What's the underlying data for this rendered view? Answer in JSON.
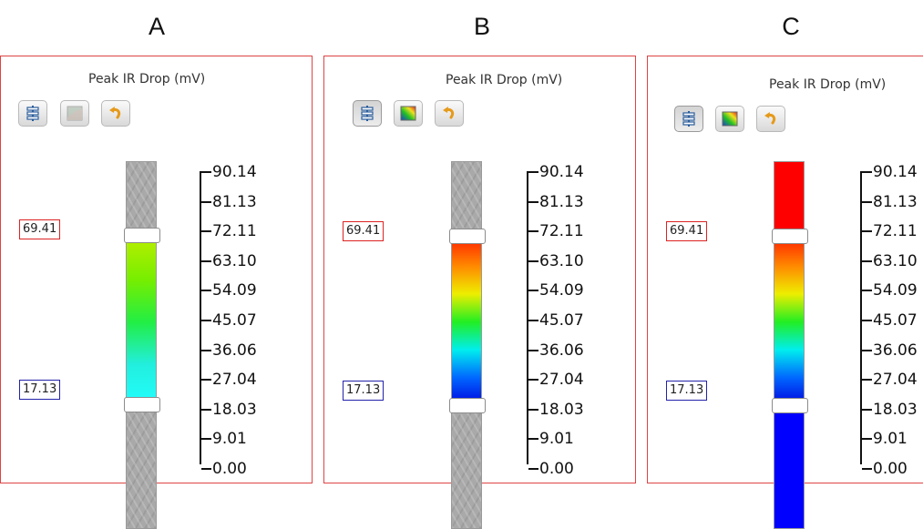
{
  "panels": [
    {
      "letter": "A",
      "title": "Peak IR Drop (mV)",
      "upper_value": "69.41",
      "lower_value": "17.13",
      "mode": "gradient-between-handles",
      "gradient_colors": [
        "#b7ee00",
        "#77ee00",
        "#22ee44",
        "#22eedd",
        "#22ffff"
      ],
      "above_color": "#a9a9a9",
      "below_color": "#a9a9a9",
      "buttons": [
        {
          "icon": "adjust-sliders-icon",
          "state": "normal"
        },
        {
          "icon": "color-map-icon",
          "state": "disabled"
        },
        {
          "icon": "reset-icon",
          "state": "normal"
        }
      ]
    },
    {
      "letter": "B",
      "title": "Peak IR Drop (mV)",
      "upper_value": "69.41",
      "lower_value": "17.13",
      "mode": "full-spectrum-between-handles",
      "gradient_colors": [
        "#ff2200",
        "#ff8800",
        "#eeee00",
        "#22ee22",
        "#00eeee",
        "#0066ff",
        "#0000dd"
      ],
      "above_color": "#a9a9a9",
      "below_color": "#a9a9a9",
      "buttons": [
        {
          "icon": "adjust-sliders-icon",
          "state": "pressed"
        },
        {
          "icon": "color-map-icon",
          "state": "normal"
        },
        {
          "icon": "reset-icon",
          "state": "normal"
        }
      ]
    },
    {
      "letter": "C",
      "title": "Peak IR Drop (mV)",
      "upper_value": "69.41",
      "lower_value": "17.13",
      "mode": "spectrum-with-saturated-ends",
      "gradient_colors": [
        "#ff2200",
        "#ff8800",
        "#eeee00",
        "#22ee22",
        "#00eeee",
        "#0066ff",
        "#0000dd"
      ],
      "above_color": "#ff0000",
      "below_color": "#0000ff",
      "buttons": [
        {
          "icon": "adjust-sliders-icon",
          "state": "pressed"
        },
        {
          "icon": "color-map-icon",
          "state": "normal"
        },
        {
          "icon": "reset-icon",
          "state": "normal"
        }
      ]
    }
  ],
  "scale": {
    "unit": "mV",
    "min": 0,
    "max": 90.14,
    "ticks": [
      "90.14",
      "81.13",
      "72.11",
      "63.10",
      "54.09",
      "45.07",
      "36.06",
      "27.04",
      "18.03",
      "9.01",
      "0.00"
    ]
  }
}
